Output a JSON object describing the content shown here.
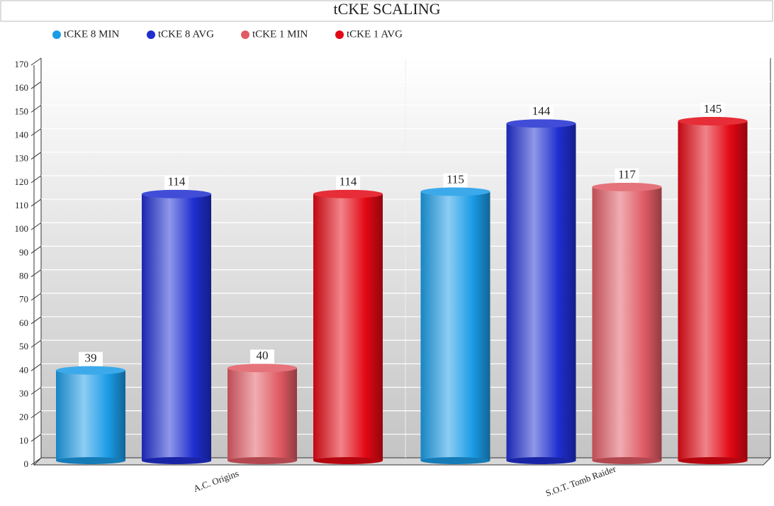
{
  "chart_data": {
    "type": "bar",
    "title": "tCKE SCALING",
    "categories": [
      "A.C. Origins",
      "S.O.T. Tomb Raider"
    ],
    "series": [
      {
        "name": "tCKE 8 MIN",
        "color": "#1a9be6",
        "values": [
          39,
          115
        ]
      },
      {
        "name": "tCKE 8 AVG",
        "color": "#1f2ed0",
        "values": [
          114,
          144
        ]
      },
      {
        "name": "tCKE 1 MIN",
        "color": "#e05a64",
        "values": [
          40,
          117
        ]
      },
      {
        "name": "tCKE 1 AVG",
        "color": "#e30814",
        "values": [
          114,
          145
        ]
      }
    ],
    "ylim": [
      0,
      170
    ],
    "yticks": [
      0,
      10,
      20,
      30,
      40,
      50,
      60,
      70,
      80,
      90,
      100,
      110,
      120,
      130,
      140,
      150,
      160,
      170
    ],
    "grid": true
  }
}
